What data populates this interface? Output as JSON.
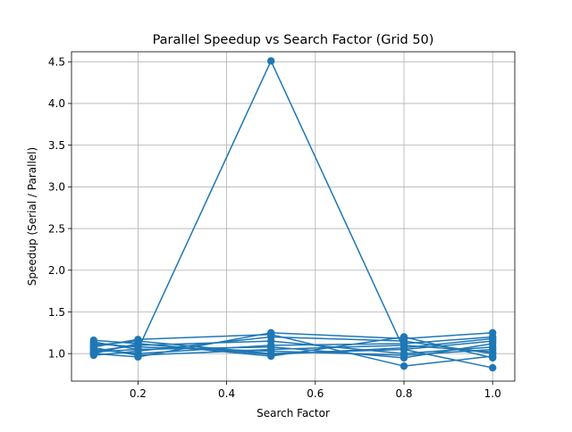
{
  "chart_data": {
    "type": "line",
    "title": "Parallel Speedup vs Search Factor (Grid 50)",
    "xlabel": "Search Factor",
    "ylabel": "Speedup (Serial / Parallel)",
    "xlim": [
      0.05,
      1.05
    ],
    "ylim": [
      0.67,
      4.62
    ],
    "xticks": [
      0.2,
      0.4,
      0.6,
      0.8,
      1.0
    ],
    "xtick_labels": [
      "0.2",
      "0.4",
      "0.6",
      "0.8",
      "1.0"
    ],
    "yticks": [
      1.0,
      1.5,
      2.0,
      2.5,
      3.0,
      3.5,
      4.0,
      4.5
    ],
    "ytick_labels": [
      "1.0",
      "1.5",
      "2.0",
      "2.5",
      "3.0",
      "3.5",
      "4.0",
      "4.5"
    ],
    "grid": true,
    "legend": "none",
    "series_color": "#1f77b4",
    "marker": "circle",
    "series": [
      {
        "x": [
          0.1,
          0.2,
          0.5,
          0.8,
          1.0
        ],
        "y": [
          1.02,
          1.05,
          4.51,
          1.05,
          0.83
        ]
      },
      {
        "x": [
          0.1,
          0.2,
          0.5,
          0.8,
          1.0
        ],
        "y": [
          1.16,
          1.12,
          0.97,
          1.2,
          0.95
        ]
      },
      {
        "x": [
          0.1,
          0.2,
          0.5,
          0.8,
          1.0
        ],
        "y": [
          1.0,
          0.96,
          1.25,
          1.18,
          1.25
        ]
      },
      {
        "x": [
          0.1,
          0.2,
          0.5,
          0.8,
          1.0
        ],
        "y": [
          1.08,
          1.17,
          1.23,
          0.85,
          0.97
        ]
      },
      {
        "x": [
          0.1,
          0.2,
          0.5,
          0.8,
          1.0
        ],
        "y": [
          1.05,
          1.0,
          1.1,
          1.12,
          1.2
        ]
      },
      {
        "x": [
          0.1,
          0.2,
          0.5,
          0.8,
          1.0
        ],
        "y": [
          1.12,
          1.08,
          1.03,
          0.98,
          1.05
        ]
      },
      {
        "x": [
          0.1,
          0.2,
          0.5,
          0.8,
          1.0
        ],
        "y": [
          0.98,
          1.03,
          1.2,
          1.15,
          1.0
        ]
      },
      {
        "x": [
          0.1,
          0.2,
          0.5,
          0.8,
          1.0
        ],
        "y": [
          1.1,
          1.15,
          1.0,
          1.05,
          1.15
        ]
      },
      {
        "x": [
          0.1,
          0.2,
          0.5,
          0.8,
          1.0
        ],
        "y": [
          1.03,
          1.1,
          1.15,
          1.0,
          1.08
        ]
      },
      {
        "x": [
          0.1,
          0.2,
          0.5,
          0.8,
          1.0
        ],
        "y": [
          1.07,
          0.98,
          1.05,
          1.1,
          1.02
        ]
      },
      {
        "x": [
          0.1,
          0.2,
          0.5,
          0.8,
          1.0
        ],
        "y": [
          1.14,
          1.05,
          1.08,
          0.95,
          1.12
        ]
      },
      {
        "x": [
          0.1,
          0.2,
          0.5,
          0.8,
          1.0
        ],
        "y": [
          1.0,
          1.12,
          0.99,
          1.07,
          1.18
        ]
      }
    ]
  }
}
